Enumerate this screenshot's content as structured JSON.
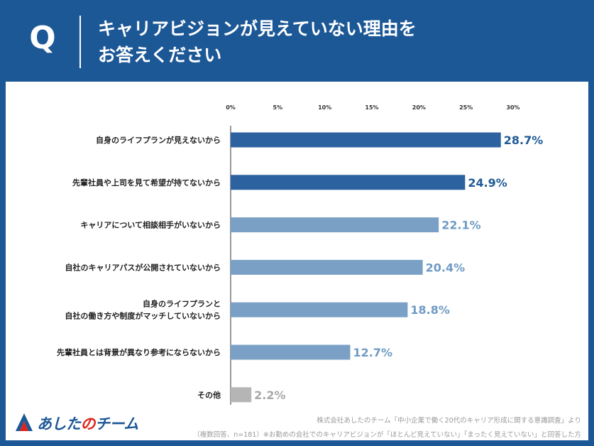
{
  "header": {
    "q_label": "Q",
    "question_line1": "キャリアビジョンが見えていない理由を",
    "question_line2": "お答えください"
  },
  "colors": {
    "background": "#1d5896",
    "bar_dark": "#2c62a0",
    "bar_mid": "#7aa1c5",
    "bar_gray": "#b5b5b5",
    "label_dark": "#1f5a96",
    "label_mid": "#6f9bc4",
    "label_gray": "#a8a8a8",
    "logo_red": "#e2231a"
  },
  "chart_data": {
    "type": "bar",
    "orientation": "horizontal",
    "xlim": [
      0,
      30
    ],
    "ticks": [
      "0%",
      "5%",
      "10%",
      "15%",
      "20%",
      "25%",
      "30%"
    ],
    "tick_values": [
      0,
      5,
      10,
      15,
      20,
      25,
      30
    ],
    "categories": [
      [
        "自身のライフプランが見えないから"
      ],
      [
        "先輩社員や上司を見て希望が持てないから"
      ],
      [
        "キャリアについて相談相手がいないから"
      ],
      [
        "自社のキャリアパスが公開されていないから"
      ],
      [
        "自身のライフプランと",
        "自社の働き方や制度がマッチしていないから"
      ],
      [
        "先輩社員とは背景が異なり参考にならないから"
      ],
      [
        "その他"
      ]
    ],
    "values": [
      28.7,
      24.9,
      22.1,
      20.4,
      18.8,
      12.7,
      2.2
    ],
    "value_labels": [
      "28.7%",
      "24.9%",
      "22.1%",
      "20.4%",
      "18.8%",
      "12.7%",
      "2.2%"
    ],
    "bar_tones": [
      "dark",
      "dark",
      "mid",
      "mid",
      "mid",
      "mid",
      "gray"
    ]
  },
  "logo": {
    "text_a": "あした",
    "text_no": "の",
    "text_b": "チーム"
  },
  "source": {
    "line1": "株式会社あしたのチーム「中小企業で働く20代のキャリア形成に関する意識調査」より",
    "line2": "（複数回答、n=181）※お勤めの会社でのキャリアビジョンが「ほとんど見えていない」「まったく見えていない」と回答した方"
  }
}
